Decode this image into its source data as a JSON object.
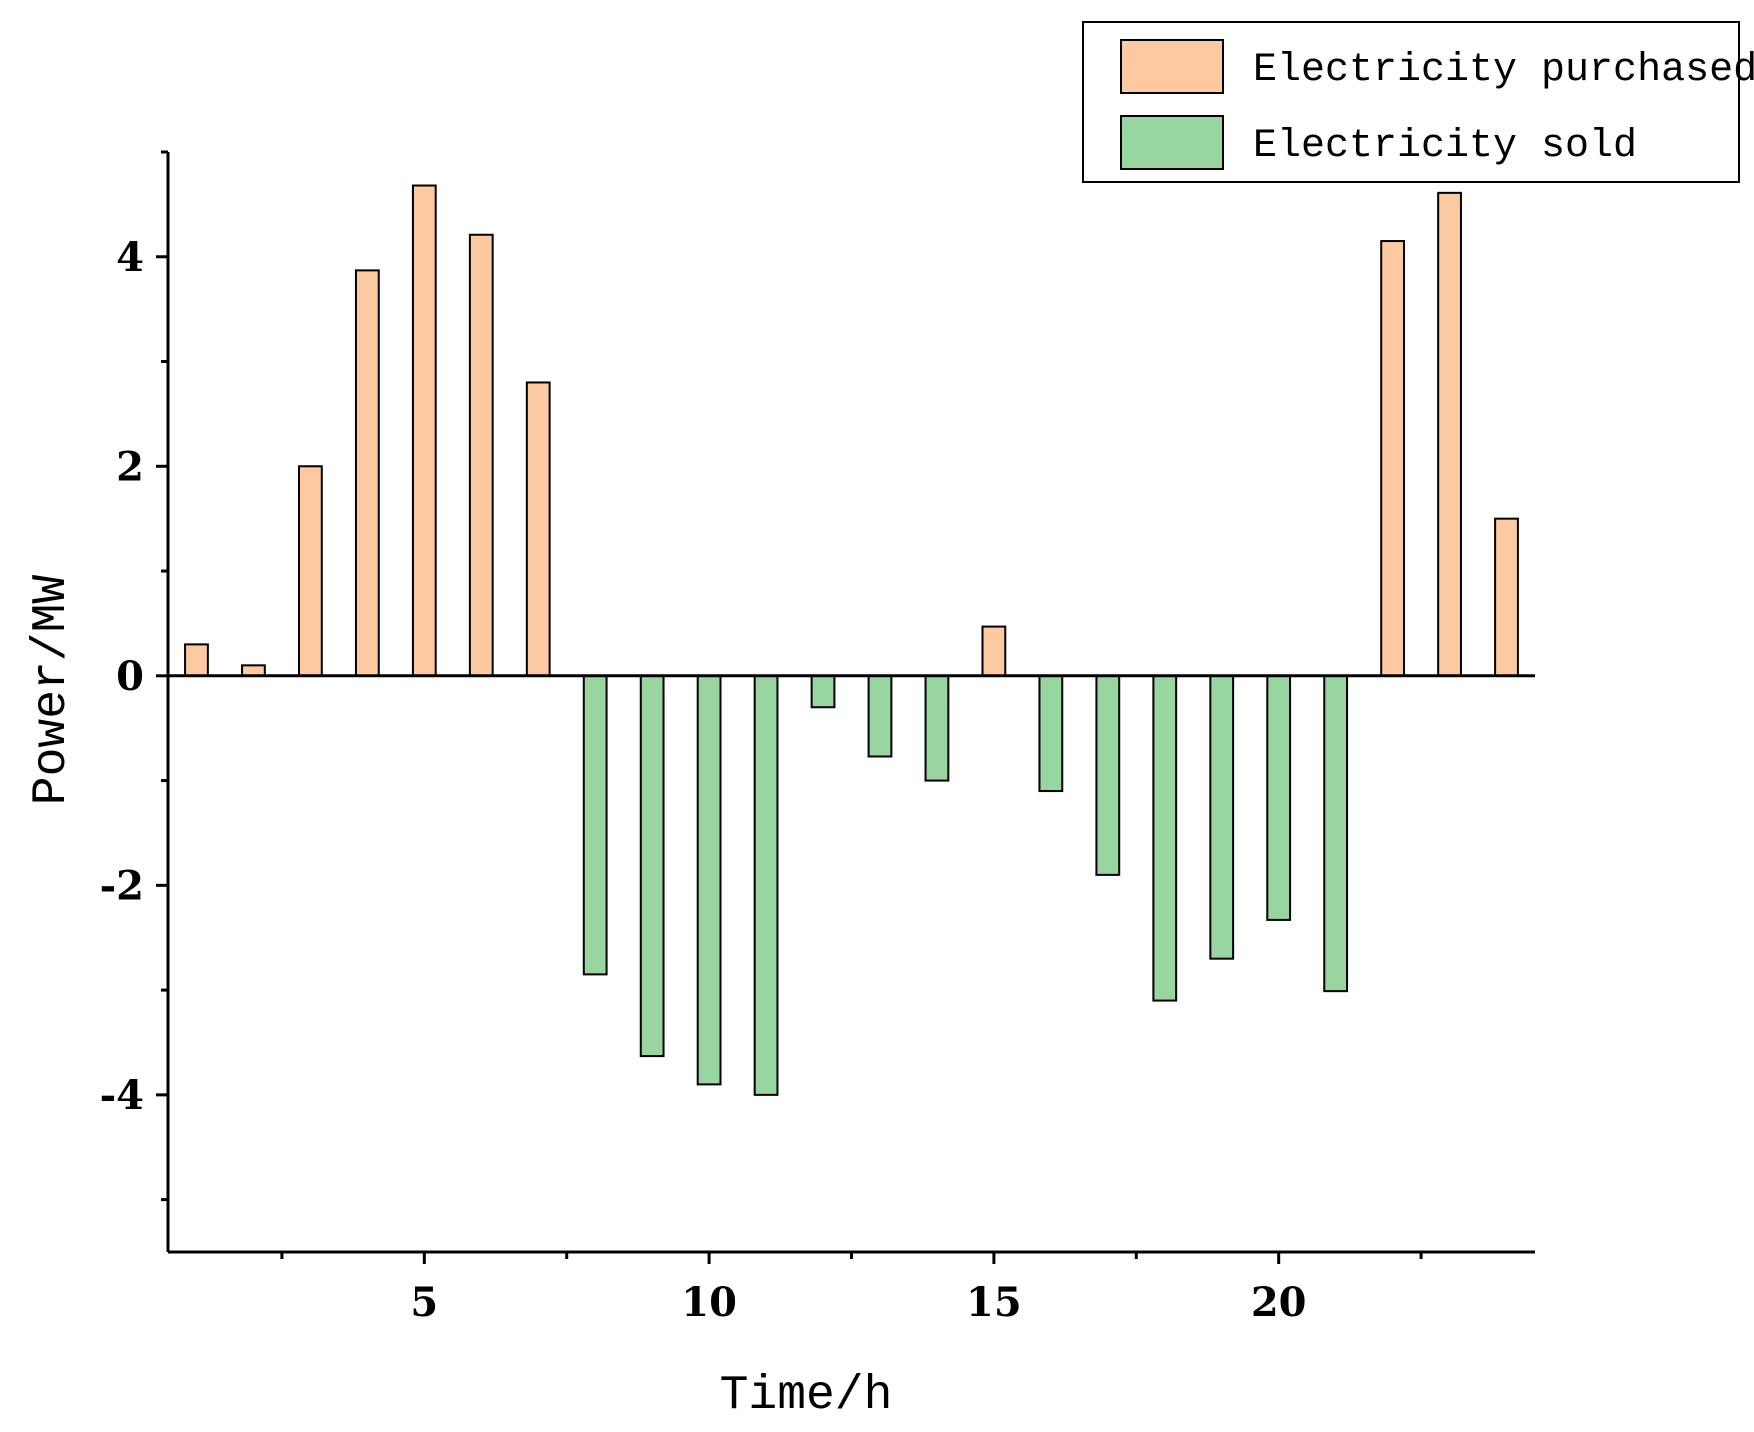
{
  "chart_data": {
    "type": "bar",
    "title": "",
    "xlabel": "Time/h",
    "ylabel": "Power/MW",
    "xlim": [
      0.5,
      24.5
    ],
    "ylim": [
      -5.5,
      5
    ],
    "grid": false,
    "legend_position": "top-right",
    "x": [
      1,
      2,
      3,
      4,
      5,
      6,
      7,
      8,
      9,
      10,
      11,
      12,
      13,
      14,
      15,
      16,
      17,
      18,
      19,
      20,
      21,
      22,
      23,
      24
    ],
    "x_ticks": [
      5,
      10,
      15,
      20
    ],
    "x_tick_labels": [
      "5",
      "10",
      "15",
      "20"
    ],
    "x_minor_ticks": [
      2.5,
      7.5,
      12.5,
      17.5,
      22.5
    ],
    "y_ticks": [
      -4,
      -2,
      0,
      2,
      4
    ],
    "y_tick_labels": [
      "-4",
      "-2",
      "0",
      "2",
      "4"
    ],
    "y_minor_ticks": [
      -5,
      -3,
      -1,
      1,
      3,
      5
    ],
    "series": [
      {
        "name": "Electricity purchased",
        "color": "#FDC9A0",
        "values": [
          0.3,
          0.1,
          2.0,
          3.87,
          4.68,
          4.21,
          2.8,
          0,
          0,
          0,
          0,
          0,
          0,
          0,
          0.47,
          0,
          0,
          0,
          0,
          0,
          0,
          4.15,
          4.61,
          1.5
        ]
      },
      {
        "name": "Electricity sold",
        "color": "#98D5A0",
        "values": [
          0,
          0,
          0,
          0,
          0,
          0,
          0,
          -2.85,
          -3.63,
          -3.9,
          -4.0,
          -0.3,
          -0.77,
          -1.0,
          0,
          -1.1,
          -1.9,
          -3.1,
          -2.7,
          -2.33,
          -3.01,
          0,
          0,
          0
        ]
      }
    ]
  }
}
